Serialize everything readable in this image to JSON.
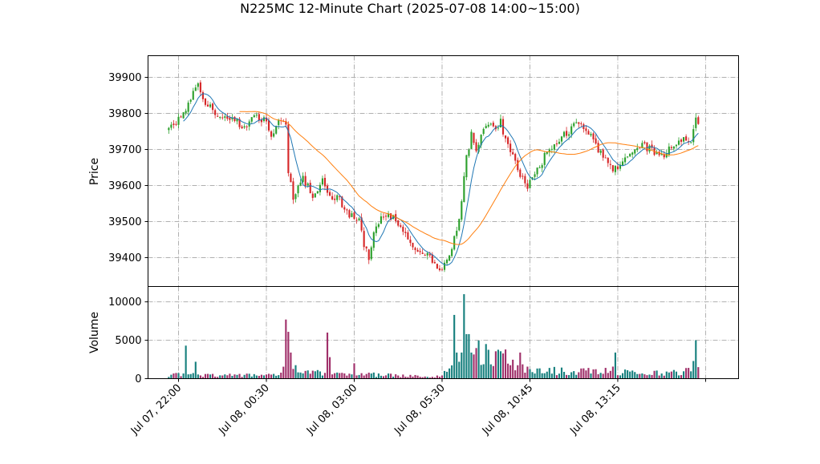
{
  "chart_data": {
    "type": "candlestick",
    "title": "N225MC 12-Minute Chart (2025-07-08 14:00~15:00)",
    "price_panel": {
      "ylabel": "Price",
      "ylim": [
        39320,
        39960
      ],
      "yticks": [
        39400,
        39500,
        39600,
        39700,
        39800,
        39900
      ],
      "grid": true
    },
    "volume_panel": {
      "ylabel": "Volume",
      "ylim": [
        0,
        12000
      ],
      "yticks": [
        0,
        5000,
        10000
      ],
      "grid": true
    },
    "x_index_range": [
      -8.5,
      233.5
    ],
    "xticks": [
      {
        "index": 4,
        "label": "Jul 07, 22:00"
      },
      {
        "index": 40,
        "label": "Jul 08, 00:30"
      },
      {
        "index": 76,
        "label": "Jul 08, 03:00"
      },
      {
        "index": 112,
        "label": "Jul 08, 05:30"
      },
      {
        "index": 148,
        "label": "Jul 08, 10:45"
      },
      {
        "index": 184,
        "label": "Jul 08, 13:15"
      },
      {
        "index": 220,
        "label": ""
      }
    ],
    "colors": {
      "up": "#2ca02c",
      "down": "#d62728",
      "ma_short": "#1f77b4",
      "ma_long": "#ff7f0e",
      "volume_up": "#17807e",
      "volume_down": "#a0306a"
    },
    "close_anchors": [
      [
        0,
        39760
      ],
      [
        5,
        39790
      ],
      [
        9,
        39840
      ],
      [
        12,
        39880
      ],
      [
        14,
        39830
      ],
      [
        18,
        39810
      ],
      [
        22,
        39780
      ],
      [
        26,
        39790
      ],
      [
        31,
        39760
      ],
      [
        35,
        39790
      ],
      [
        40,
        39780
      ],
      [
        42,
        39740
      ],
      [
        46,
        39790
      ],
      [
        48,
        39770
      ],
      [
        49,
        39640
      ],
      [
        51,
        39560
      ],
      [
        55,
        39620
      ],
      [
        59,
        39570
      ],
      [
        63,
        39620
      ],
      [
        66,
        39570
      ],
      [
        70,
        39560
      ],
      [
        74,
        39520
      ],
      [
        78,
        39500
      ],
      [
        80,
        39440
      ],
      [
        82,
        39390
      ],
      [
        84,
        39460
      ],
      [
        86,
        39500
      ],
      [
        89,
        39520
      ],
      [
        93,
        39510
      ],
      [
        96,
        39470
      ],
      [
        100,
        39420
      ],
      [
        104,
        39410
      ],
      [
        107,
        39400
      ],
      [
        111,
        39360
      ],
      [
        114,
        39390
      ],
      [
        118,
        39470
      ],
      [
        120,
        39560
      ],
      [
        122,
        39680
      ],
      [
        124,
        39740
      ],
      [
        126,
        39700
      ],
      [
        128,
        39740
      ],
      [
        130,
        39770
      ],
      [
        134,
        39760
      ],
      [
        136,
        39780
      ],
      [
        138,
        39720
      ],
      [
        141,
        39690
      ],
      [
        144,
        39630
      ],
      [
        147,
        39600
      ],
      [
        151,
        39640
      ],
      [
        154,
        39680
      ],
      [
        157,
        39710
      ],
      [
        160,
        39730
      ],
      [
        164,
        39750
      ],
      [
        167,
        39770
      ],
      [
        170,
        39760
      ],
      [
        173,
        39740
      ],
      [
        176,
        39700
      ],
      [
        179,
        39680
      ],
      [
        182,
        39650
      ],
      [
        184,
        39640
      ],
      [
        188,
        39680
      ],
      [
        191,
        39700
      ],
      [
        194,
        39710
      ],
      [
        197,
        39700
      ],
      [
        200,
        39690
      ],
      [
        203,
        39680
      ],
      [
        206,
        39710
      ],
      [
        209,
        39730
      ],
      [
        212,
        39720
      ],
      [
        214,
        39720
      ],
      [
        216,
        39780
      ],
      [
        217,
        39780
      ]
    ],
    "volume_anchors": [
      [
        0,
        500
      ],
      [
        10,
        500
      ],
      [
        20,
        500
      ],
      [
        30,
        400
      ],
      [
        45,
        600
      ],
      [
        49,
        1500
      ],
      [
        55,
        800
      ],
      [
        65,
        700
      ],
      [
        75,
        700
      ],
      [
        85,
        500
      ],
      [
        95,
        400
      ],
      [
        105,
        300
      ],
      [
        112,
        350
      ],
      [
        117,
        2500
      ],
      [
        121,
        3500
      ],
      [
        130,
        3200
      ],
      [
        136,
        2500
      ],
      [
        142,
        1500
      ],
      [
        150,
        1100
      ],
      [
        160,
        1000
      ],
      [
        170,
        900
      ],
      [
        180,
        1100
      ],
      [
        190,
        800
      ],
      [
        200,
        700
      ],
      [
        208,
        900
      ],
      [
        214,
        1000
      ],
      [
        217,
        800
      ]
    ],
    "volume_spikes": [
      [
        7,
        4300
      ],
      [
        11,
        2200
      ],
      [
        48,
        7700
      ],
      [
        49,
        6100
      ],
      [
        50,
        3400
      ],
      [
        65,
        6000
      ],
      [
        66,
        2800
      ],
      [
        76,
        2000
      ],
      [
        117,
        8300
      ],
      [
        118,
        3400
      ],
      [
        119,
        2200
      ],
      [
        120,
        3400
      ],
      [
        121,
        11000
      ],
      [
        122,
        5800
      ],
      [
        123,
        5800
      ],
      [
        138,
        3800
      ],
      [
        144,
        3400
      ],
      [
        183,
        3400
      ],
      [
        215,
        2300
      ],
      [
        216,
        5000
      ],
      [
        217,
        1500
      ]
    ],
    "bar_count": 218,
    "ma_short_window": 7,
    "ma_long_window": 30
  }
}
